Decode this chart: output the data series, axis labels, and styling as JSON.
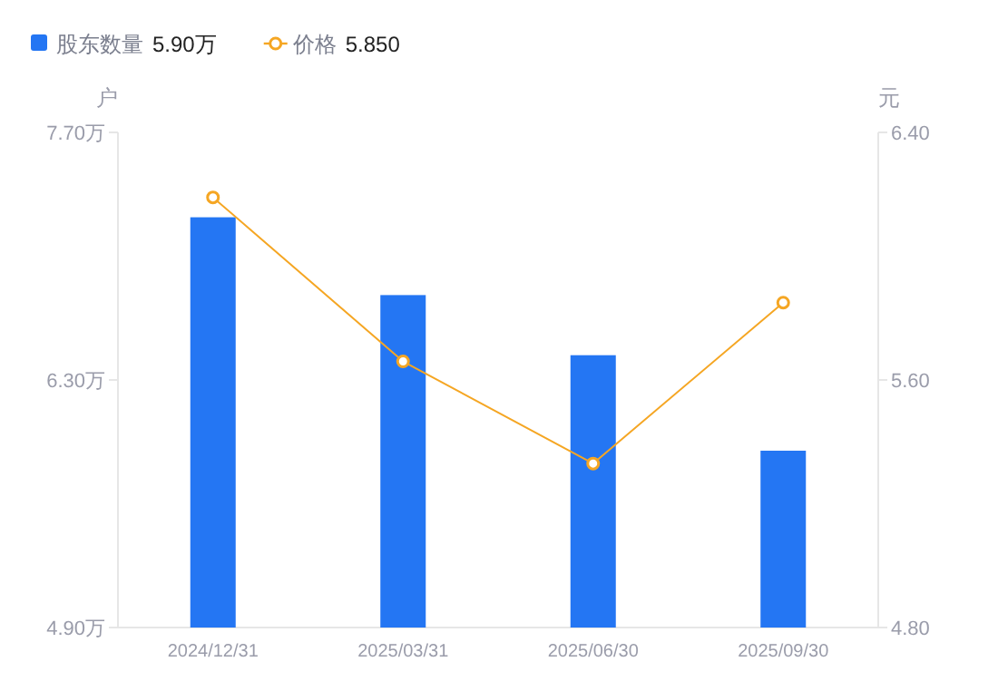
{
  "chart_data": {
    "type": "bar",
    "categories": [
      "2024/12/31",
      "2025/03/31",
      "2025/06/30",
      "2025/09/30"
    ],
    "ylabel": "户",
    "y2label": "元",
    "ylim": [
      4.9,
      7.7
    ],
    "yticks": [
      {
        "value": 4.9,
        "label": "4.90万"
      },
      {
        "value": 6.3,
        "label": "6.30万"
      },
      {
        "value": 7.7,
        "label": "7.70万"
      }
    ],
    "y2lim": [
      4.8,
      6.4
    ],
    "y2ticks": [
      {
        "value": 4.8,
        "label": "4.80"
      },
      {
        "value": 5.6,
        "label": "5.60"
      },
      {
        "value": 6.4,
        "label": "6.40"
      }
    ],
    "series": [
      {
        "name": "股东数量",
        "color": "#2476f3",
        "values": [
          7.22,
          6.78,
          6.44,
          5.9
        ]
      },
      {
        "name": "价格",
        "type": "line",
        "axis": "y2",
        "color": "#f5a623",
        "marker": "circle",
        "values": [
          6.19,
          5.66,
          5.33,
          5.85
        ]
      }
    ],
    "annotations": [
      "5.90万",
      "5.850"
    ],
    "legend": "top left",
    "grid": false
  }
}
